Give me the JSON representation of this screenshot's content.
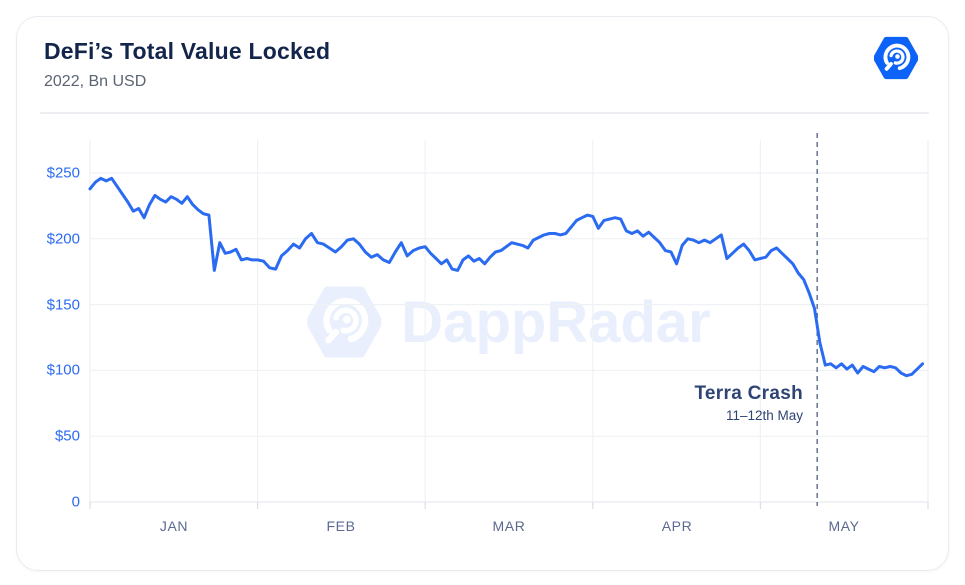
{
  "header": {
    "title": "DeFi’s Total Value Locked",
    "subtitle": "2022, Bn USD"
  },
  "logo": {
    "label": "DappRadar logo"
  },
  "watermark": {
    "text": "DappRadar"
  },
  "annotation": {
    "title": "Terra Crash",
    "subtitle": "11–12th May"
  },
  "colors": {
    "line": "#2A6BF2",
    "axis_labels": "#2C6BF2",
    "grid": "#EFF1F5",
    "axis_line": "#E8EBF0",
    "tick_mark": "#D9DEE7",
    "dashed_line": "#64748F",
    "logo_hex": "#0D63F7",
    "watermark": "#E9EFFC",
    "annotation_text": "#2E4474",
    "title": "#14254C",
    "subtitle": "#5B6472"
  },
  "chart_data": {
    "type": "line",
    "title": "DeFi’s Total Value Locked",
    "subtitle": "2022, Bn USD",
    "xlabel": "",
    "ylabel": "Bn USD",
    "legend_position": "none",
    "grid": true,
    "categories": [
      "JAN",
      "FEB",
      "MAR",
      "APR",
      "MAY"
    ],
    "days_per_month": [
      31,
      28,
      31,
      30,
      31
    ],
    "y_ticks": [
      "$250",
      "$200",
      "$150",
      "$100",
      "$50",
      "0"
    ],
    "y_tick_values": [
      250,
      200,
      150,
      100,
      50,
      0
    ],
    "ylim": [
      0,
      275
    ],
    "series_name": "DeFi Total Value Locked (Bn USD)",
    "values": [
      238,
      243,
      246,
      244,
      246,
      240,
      234,
      228,
      221,
      223,
      216,
      226,
      233,
      230,
      228,
      232,
      230,
      227,
      232,
      226,
      222,
      219,
      218,
      176,
      197,
      189,
      190,
      192,
      184,
      185,
      184,
      184,
      183,
      178,
      177,
      187,
      191,
      196,
      193,
      200,
      204,
      197,
      196,
      193,
      190,
      194,
      199,
      200,
      196,
      190,
      186,
      188,
      184,
      182,
      190,
      197,
      187,
      191,
      193,
      194,
      189,
      185,
      181,
      184,
      177,
      176,
      184,
      187,
      183,
      185,
      181,
      186,
      190,
      191,
      194,
      197,
      196,
      195,
      193,
      199,
      201,
      203,
      204,
      204,
      203,
      204,
      209,
      214,
      216,
      218,
      217,
      208,
      214,
      215,
      216,
      215,
      206,
      204,
      206,
      202,
      205,
      201,
      197,
      191,
      190,
      181,
      195,
      200,
      199,
      197,
      199,
      197,
      200,
      203,
      185,
      189,
      193,
      196,
      191,
      184,
      185,
      186,
      191,
      193,
      189,
      185,
      181,
      174,
      169,
      159,
      147,
      121,
      104,
      105,
      102,
      105,
      101,
      104,
      98,
      103,
      101,
      99,
      103,
      102,
      103,
      102,
      98,
      96,
      97,
      101,
      105
    ],
    "annotation_line": {
      "label": "Terra Crash",
      "sublabel": "11–12th May",
      "month_index": 4,
      "day_of_month": 10.5
    }
  }
}
